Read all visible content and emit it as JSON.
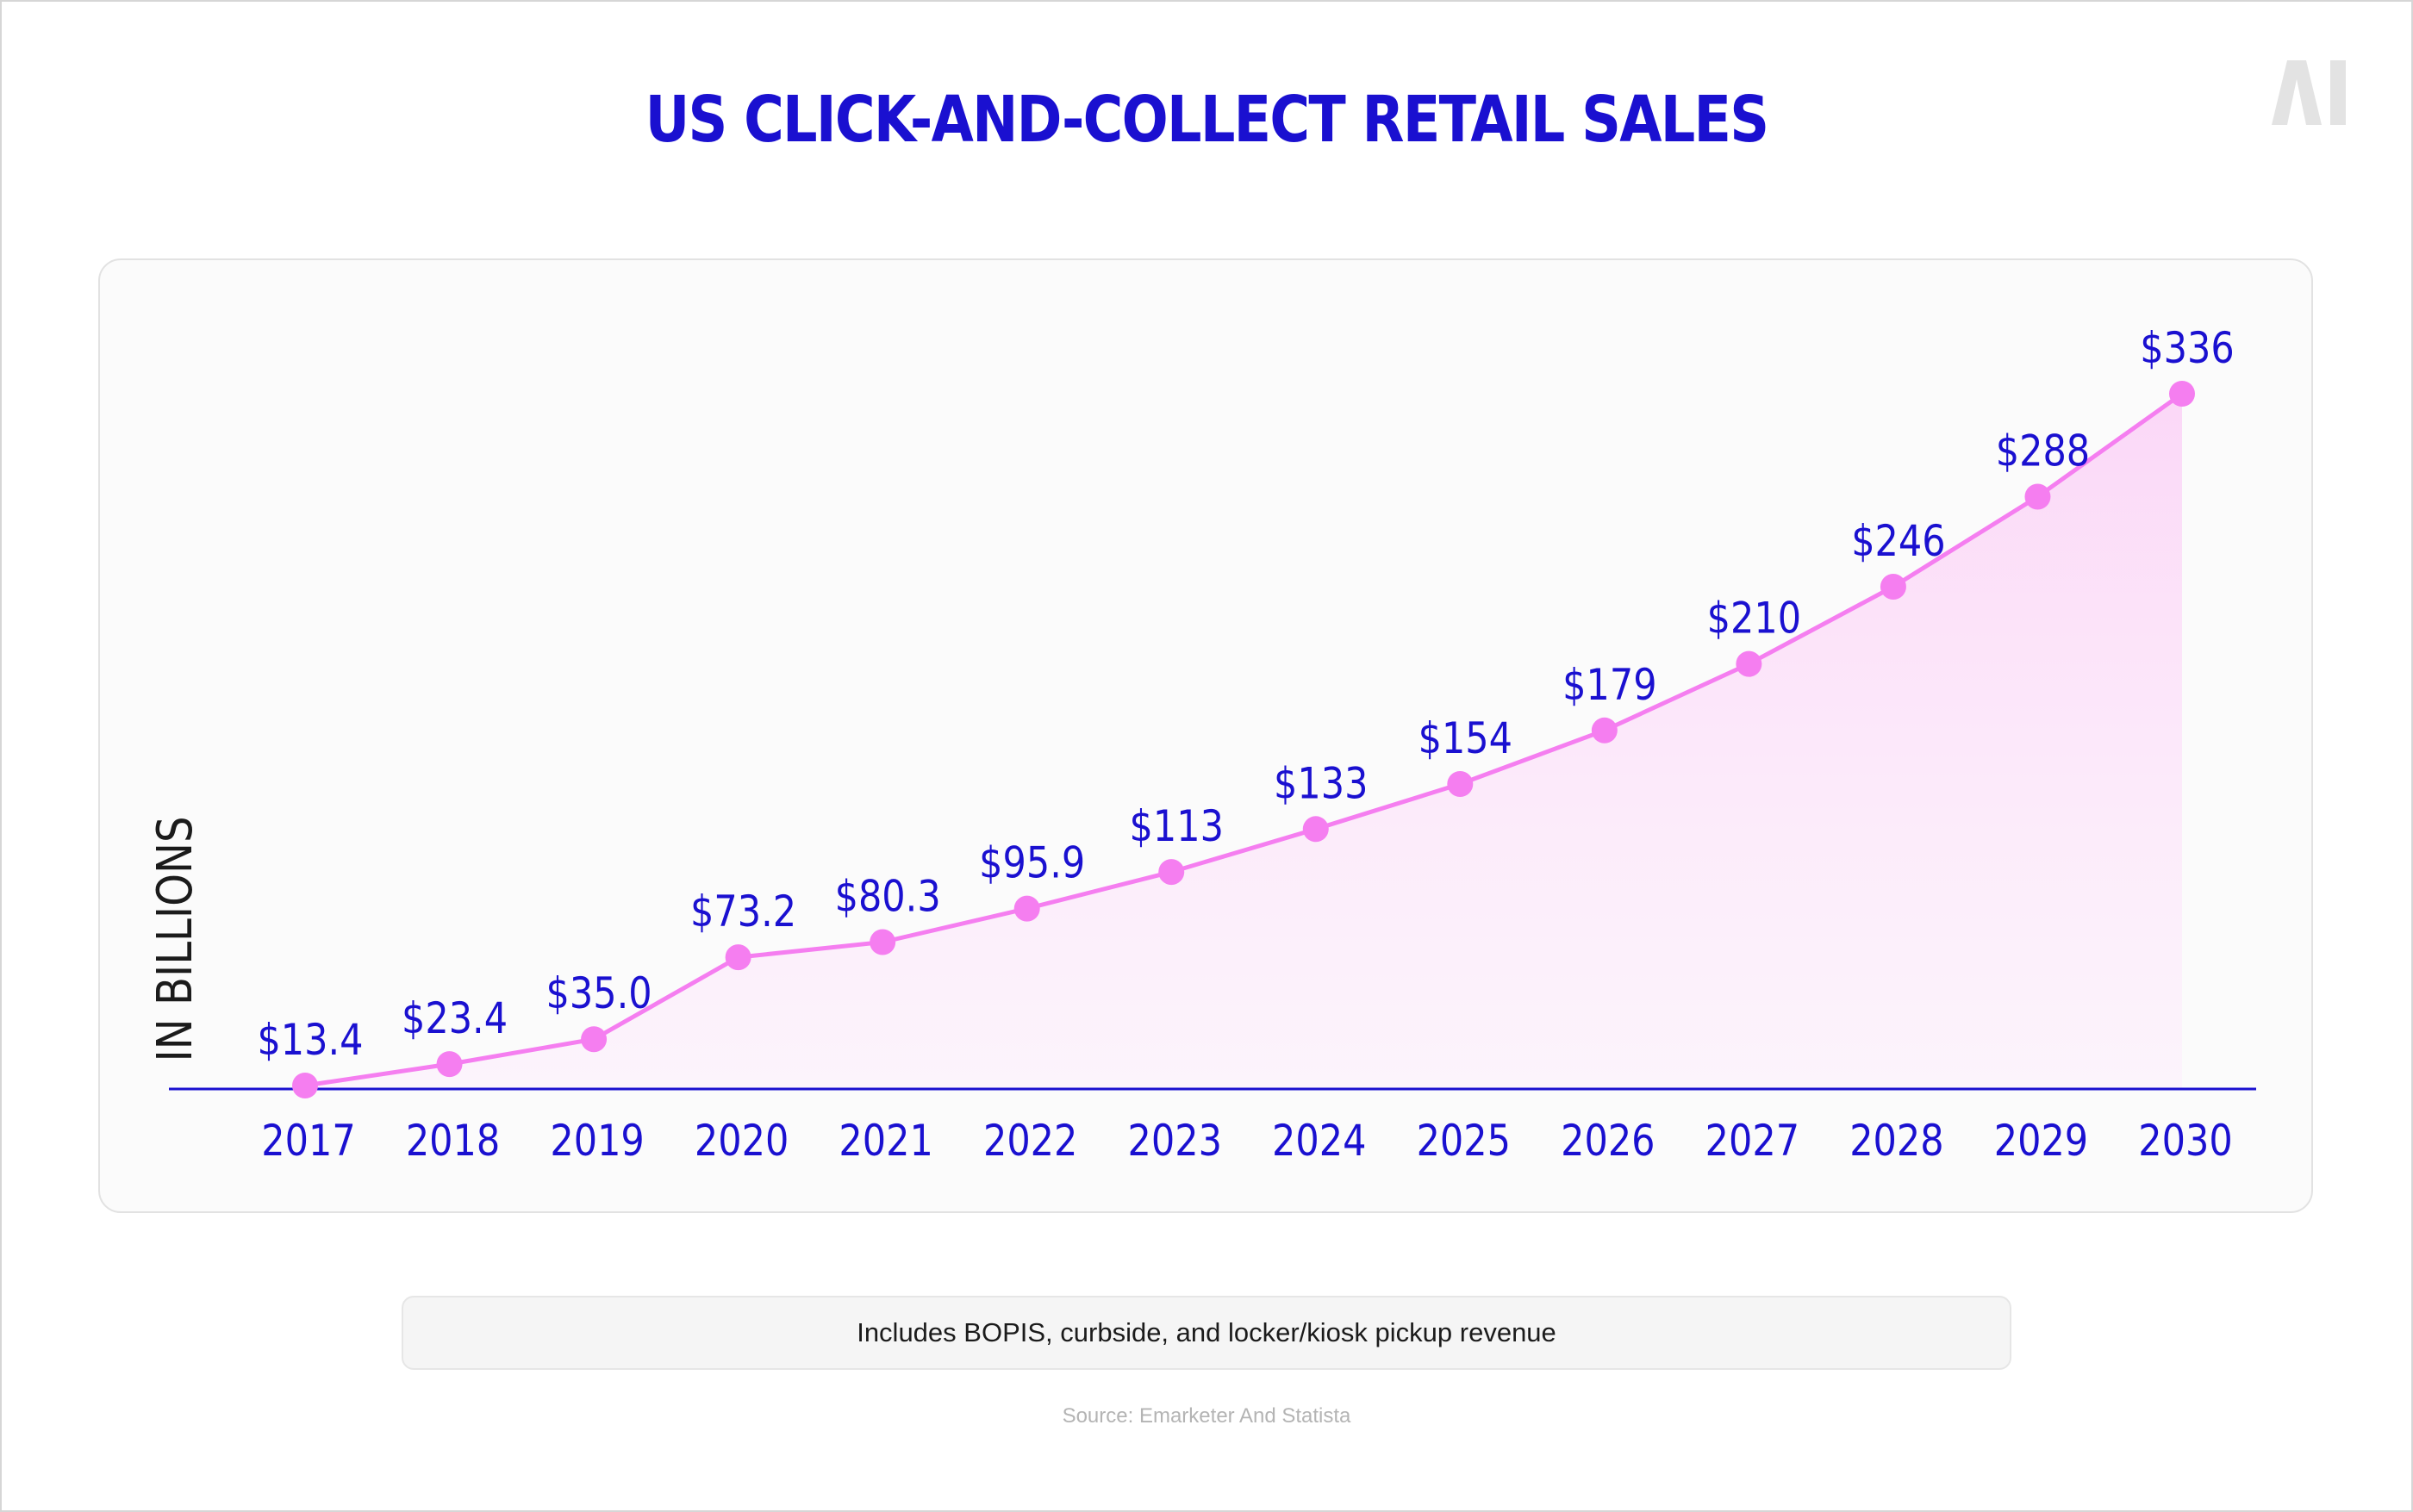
{
  "header": {
    "title": "US CLICK-AND-COLLECT RETAIL SALES",
    "logo_text": "AI"
  },
  "footer": {
    "note": "Includes BOPIS, curbside, and locker/kiosk pickup revenue",
    "source": "Source: Emarketer And Statista"
  },
  "colors": {
    "title": "#1a10d0",
    "labels": "#1a10d0",
    "line": "#f57ef0",
    "marker": "#f57ef0",
    "fill": "#fbd7f7",
    "baseline": "#1a10d0",
    "ylabel": "#1b1b1b"
  },
  "chart_data": {
    "type": "area",
    "title": "US CLICK-AND-COLLECT RETAIL SALES",
    "xlabel": "",
    "ylabel": "IN BILLIONS",
    "x": [
      "2017",
      "2018",
      "2019",
      "2020",
      "2021",
      "2022",
      "2023",
      "2024",
      "2025",
      "2026",
      "2027",
      "2028",
      "2029",
      "2030"
    ],
    "series": [
      {
        "values": [
          13.4,
          23.4,
          35.0,
          73.2,
          80.3,
          95.9,
          113,
          133,
          154,
          179,
          210,
          246,
          288,
          336
        ],
        "labels": [
          "$13.4",
          "$23.4",
          "$35.0",
          "$73.2",
          "$80.3",
          "$95.9",
          "$113",
          "$133",
          "$154",
          "$179",
          "$210",
          "$246",
          "$288",
          "$336"
        ]
      }
    ],
    "ylim": [
      13.4,
      336
    ],
    "grid": false,
    "legend": "none"
  }
}
